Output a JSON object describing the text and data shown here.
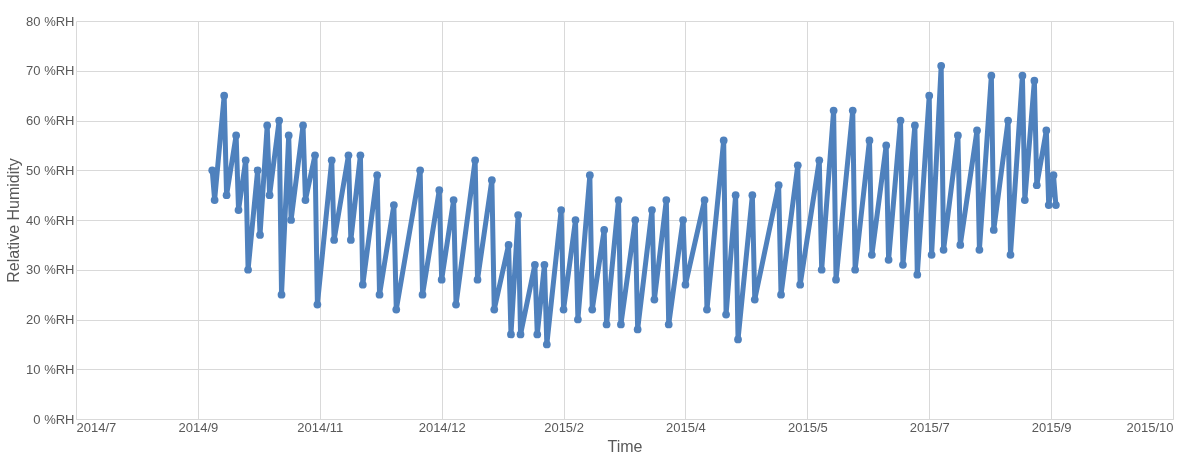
{
  "chart_data": {
    "type": "line",
    "xlabel": "Time",
    "ylabel": "Relative Humidity",
    "grid": true,
    "marker": "circle",
    "line_style": "solid",
    "xlim": [
      "2014-07-25",
      "2015-10-27"
    ],
    "xticks": [
      {
        "value": "2014-07-25",
        "label": "2014/7"
      },
      {
        "value": "2014-09-14",
        "label": "2014/9"
      },
      {
        "value": "2014-11-04",
        "label": "2014/11"
      },
      {
        "value": "2014-12-25",
        "label": "2014/12"
      },
      {
        "value": "2015-02-14",
        "label": "2015/2"
      },
      {
        "value": "2015-04-06",
        "label": "2015/4"
      },
      {
        "value": "2015-05-27",
        "label": "2015/5"
      },
      {
        "value": "2015-07-17",
        "label": "2015/7"
      },
      {
        "value": "2015-09-06",
        "label": "2015/9"
      },
      {
        "value": "2015-10-27",
        "label": "2015/10"
      }
    ],
    "ylim": [
      0,
      80
    ],
    "yticks": [
      {
        "value": 0,
        "label": "0 %RH"
      },
      {
        "value": 10,
        "label": "10 %RH"
      },
      {
        "value": 20,
        "label": "20 %RH"
      },
      {
        "value": 30,
        "label": "30 %RH"
      },
      {
        "value": 40,
        "label": "40 %RH"
      },
      {
        "value": 50,
        "label": "50 %RH"
      },
      {
        "value": 60,
        "label": "60 %RH"
      },
      {
        "value": 70,
        "label": "70 %RH"
      },
      {
        "value": 80,
        "label": "80 %RH"
      }
    ],
    "series": [
      {
        "color": "#4f81bd",
        "x": [
          "2014-09-20",
          "2014-09-21",
          "2014-09-25",
          "2014-09-26",
          "2014-09-30",
          "2014-10-01",
          "2014-10-04",
          "2014-10-05",
          "2014-10-09",
          "2014-10-10",
          "2014-10-13",
          "2014-10-14",
          "2014-10-18",
          "2014-10-19",
          "2014-10-22",
          "2014-10-23",
          "2014-10-28",
          "2014-10-29",
          "2014-11-02",
          "2014-11-03",
          "2014-11-09",
          "2014-11-10",
          "2014-11-16",
          "2014-11-17",
          "2014-11-21",
          "2014-11-22",
          "2014-11-28",
          "2014-11-29",
          "2014-12-05",
          "2014-12-06",
          "2014-12-16",
          "2014-12-17",
          "2014-12-24",
          "2014-12-25",
          "2014-12-30",
          "2014-12-31",
          "2015-01-08",
          "2015-01-09",
          "2015-01-15",
          "2015-01-16",
          "2015-01-22",
          "2015-01-23",
          "2015-01-26",
          "2015-01-27",
          "2015-02-02",
          "2015-02-03",
          "2015-02-06",
          "2015-02-07",
          "2015-02-13",
          "2015-02-14",
          "2015-02-19",
          "2015-02-20",
          "2015-02-25",
          "2015-02-26",
          "2015-03-03",
          "2015-03-04",
          "2015-03-09",
          "2015-03-10",
          "2015-03-16",
          "2015-03-17",
          "2015-03-23",
          "2015-03-24",
          "2015-03-29",
          "2015-03-30",
          "2015-04-05",
          "2015-04-06",
          "2015-04-14",
          "2015-04-15",
          "2015-04-22",
          "2015-04-23",
          "2015-04-27",
          "2015-04-28",
          "2015-05-04",
          "2015-05-05",
          "2015-05-15",
          "2015-05-16",
          "2015-05-23",
          "2015-05-24",
          "2015-06-01",
          "2015-06-02",
          "2015-06-07",
          "2015-06-08",
          "2015-06-15",
          "2015-06-16",
          "2015-06-22",
          "2015-06-23",
          "2015-06-29",
          "2015-06-30",
          "2015-07-05",
          "2015-07-06",
          "2015-07-11",
          "2015-07-12",
          "2015-07-17",
          "2015-07-18",
          "2015-07-22",
          "2015-07-23",
          "2015-07-29",
          "2015-07-30",
          "2015-08-06",
          "2015-08-07",
          "2015-08-12",
          "2015-08-13",
          "2015-08-19",
          "2015-08-20",
          "2015-08-25",
          "2015-08-26",
          "2015-08-30",
          "2015-08-31",
          "2015-09-04",
          "2015-09-05",
          "2015-09-07",
          "2015-09-08"
        ],
        "values": [
          50,
          44,
          65,
          45,
          57,
          42,
          52,
          30,
          50,
          37,
          59,
          45,
          60,
          25,
          57,
          40,
          59,
          44,
          53,
          23,
          52,
          36,
          53,
          36,
          53,
          27,
          49,
          25,
          43,
          22,
          50,
          25,
          46,
          28,
          44,
          23,
          52,
          28,
          48,
          22,
          35,
          17,
          41,
          17,
          31,
          17,
          31,
          15,
          42,
          22,
          40,
          20,
          49,
          22,
          38,
          19,
          44,
          19,
          40,
          18,
          42,
          24,
          44,
          19,
          40,
          27,
          44,
          22,
          56,
          21,
          45,
          16,
          45,
          24,
          47,
          25,
          51,
          27,
          52,
          30,
          62,
          28,
          62,
          30,
          56,
          33,
          55,
          32,
          60,
          31,
          59,
          29,
          65,
          33,
          71,
          34,
          57,
          35,
          58,
          34,
          69,
          38,
          60,
          33,
          69,
          44,
          68,
          47,
          58,
          43,
          49,
          43
        ]
      }
    ]
  }
}
